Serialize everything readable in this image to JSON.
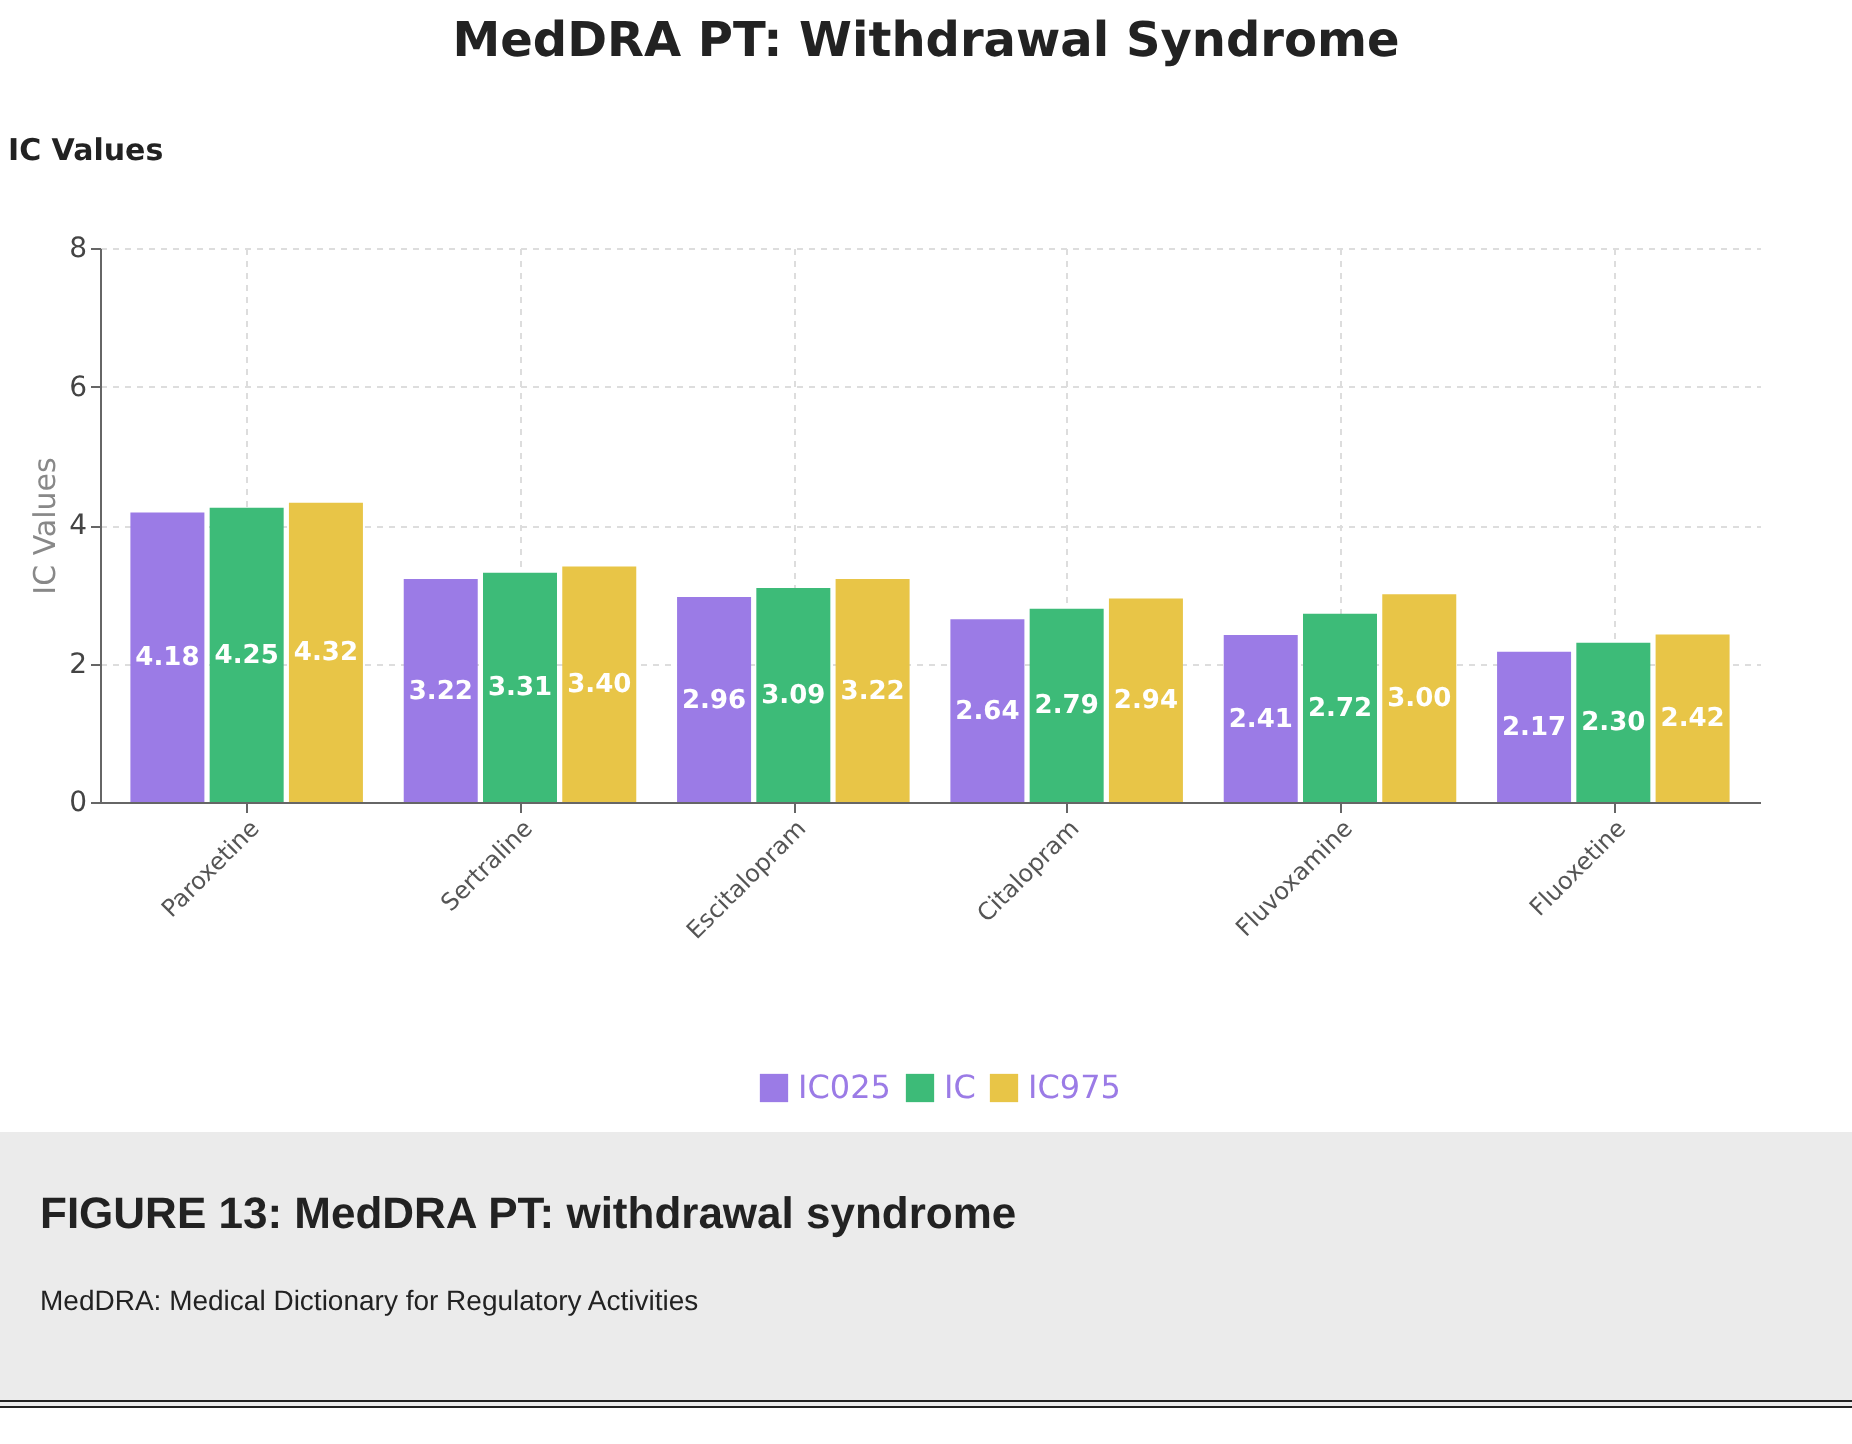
{
  "chart_data": {
    "type": "bar",
    "title": "MedDRA PT: Withdrawal Syndrome",
    "subtitle": "IC Values",
    "ylabel": "IC Values",
    "categories": [
      "Paroxetine",
      "Sertraline",
      "Escitalopram",
      "Citalopram",
      "Fluvoxamine",
      "Fluoxetine"
    ],
    "series": [
      {
        "name": "IC025",
        "color": "#9b7be6",
        "values": [
          4.18,
          3.22,
          2.96,
          2.64,
          2.41,
          2.17
        ],
        "value_labels": [
          "4.18",
          "3.22",
          "2.96",
          "2.64",
          "2.41",
          "2.17"
        ]
      },
      {
        "name": "IC",
        "color": "#3dbb78",
        "values": [
          4.25,
          3.31,
          3.09,
          2.79,
          2.72,
          2.3
        ],
        "value_labels": [
          "4.25",
          "3.31",
          "3.09",
          "2.79",
          "2.72",
          "2.30"
        ]
      },
      {
        "name": "IC975",
        "color": "#e8c547",
        "values": [
          4.32,
          3.4,
          3.22,
          2.94,
          3.0,
          2.42
        ],
        "value_labels": [
          "4.32",
          "3.40",
          "3.22",
          "2.94",
          "3.00",
          "2.42"
        ]
      }
    ],
    "ylim": [
      0,
      8
    ],
    "yticks": [
      0,
      2,
      4,
      6,
      8
    ],
    "grid": true,
    "legend": "bottom",
    "annotations": [
      "FIGURE 13: MedDRA PT: withdrawal syndrome",
      "MedDRA: Medical Dictionary for Regulatory Activities"
    ]
  }
}
